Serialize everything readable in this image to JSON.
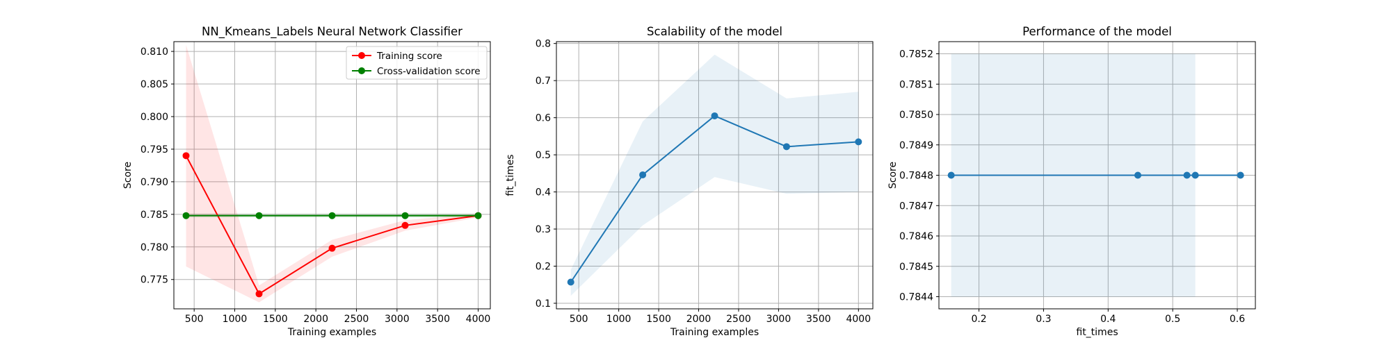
{
  "chart_data": [
    {
      "type": "line",
      "title": "NN_Kmeans_Labels Neural Network Classifier",
      "xlabel": "Training examples",
      "ylabel": "Score",
      "xlim": [
        250,
        4150
      ],
      "ylim": [
        0.7705,
        0.8115
      ],
      "xticks": [
        500,
        1000,
        1500,
        2000,
        2500,
        3000,
        3500,
        4000
      ],
      "xtick_labels": [
        "500",
        "1000",
        "1500",
        "2000",
        "2500",
        "3000",
        "3500",
        "4000"
      ],
      "yticks": [
        0.775,
        0.78,
        0.785,
        0.79,
        0.795,
        0.8,
        0.805,
        0.81
      ],
      "ytick_labels": [
        "0.775",
        "0.780",
        "0.785",
        "0.790",
        "0.795",
        "0.800",
        "0.805",
        "0.810"
      ],
      "grid": true,
      "legend_position": "top-right",
      "x": [
        400,
        1300,
        2200,
        3100,
        4000
      ],
      "series": [
        {
          "name": "Training score",
          "color": "#ff0000",
          "band_color": "#ff0000",
          "values": [
            0.794,
            0.7728,
            0.7798,
            0.7833,
            0.7848
          ],
          "band_low": [
            0.777,
            0.7715,
            0.7785,
            0.7825,
            0.7845
          ],
          "band_high": [
            0.811,
            0.7741,
            0.7811,
            0.7841,
            0.7851
          ]
        },
        {
          "name": "Cross-validation score",
          "color": "#008000",
          "band_color": "#008000",
          "values": [
            0.7848,
            0.7848,
            0.7848,
            0.7848,
            0.7848
          ],
          "band_low": [
            0.7845,
            0.7845,
            0.7845,
            0.7845,
            0.7845
          ],
          "band_high": [
            0.7851,
            0.7851,
            0.7851,
            0.7851,
            0.7851
          ]
        }
      ]
    },
    {
      "type": "line",
      "title": "Scalability of the model",
      "xlabel": "Training examples",
      "ylabel": "fit_times",
      "xlim": [
        220,
        4180
      ],
      "ylim": [
        0.085,
        0.805
      ],
      "xticks": [
        500,
        1000,
        1500,
        2000,
        2500,
        3000,
        3500,
        4000
      ],
      "xtick_labels": [
        "500",
        "1000",
        "1500",
        "2000",
        "2500",
        "3000",
        "3500",
        "4000"
      ],
      "yticks": [
        0.1,
        0.2,
        0.3,
        0.4,
        0.5,
        0.6,
        0.7,
        0.8
      ],
      "ytick_labels": [
        "0.1",
        "0.2",
        "0.3",
        "0.4",
        "0.5",
        "0.6",
        "0.7",
        "0.8"
      ],
      "grid": true,
      "x": [
        400,
        1300,
        2200,
        3100,
        4000
      ],
      "series": [
        {
          "color": "#1f77b4",
          "band_color": "#1f77b4",
          "values": [
            0.157,
            0.446,
            0.605,
            0.522,
            0.535
          ],
          "band_low": [
            0.12,
            0.31,
            0.44,
            0.395,
            0.4
          ],
          "band_high": [
            0.19,
            0.59,
            0.77,
            0.652,
            0.67
          ]
        }
      ]
    },
    {
      "type": "line",
      "title": "Performance of the model",
      "xlabel": "fit_times",
      "ylabel": "Score",
      "xlim": [
        0.138,
        0.628
      ],
      "ylim": [
        0.78436,
        0.78524
      ],
      "xticks": [
        0.2,
        0.3,
        0.4,
        0.5,
        0.6
      ],
      "xtick_labels": [
        "0.2",
        "0.3",
        "0.4",
        "0.5",
        "0.6"
      ],
      "yticks": [
        0.7844,
        0.7845,
        0.7846,
        0.7847,
        0.7848,
        0.7849,
        0.785,
        0.7851,
        0.7852
      ],
      "ytick_labels": [
        "0.7844",
        "0.7845",
        "0.7846",
        "0.7847",
        "0.7848",
        "0.7849",
        "0.7850",
        "0.7851",
        "0.7852"
      ],
      "grid": true,
      "x": [
        0.157,
        0.446,
        0.522,
        0.535,
        0.605
      ],
      "series": [
        {
          "color": "#1f77b4",
          "band_color": "#1f77b4",
          "values": [
            0.7848,
            0.7848,
            0.7848,
            0.7848,
            0.7848
          ],
          "band_x": [
            0.157,
            0.535
          ],
          "band_low": [
            0.7844,
            0.7844
          ],
          "band_high": [
            0.7852,
            0.7852
          ]
        }
      ]
    }
  ]
}
